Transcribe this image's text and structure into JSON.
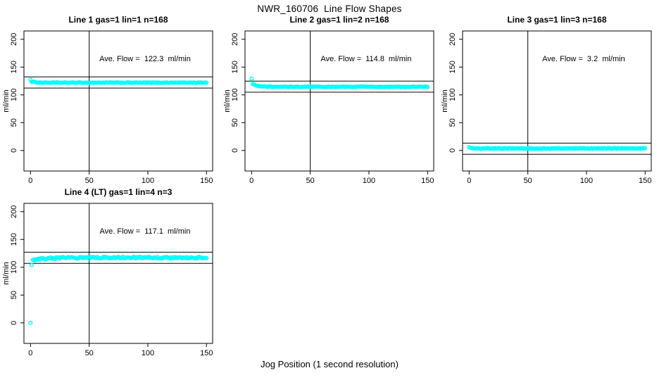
{
  "figure": {
    "title": "NWR_160706  Line Flow Shapes",
    "xlabel": "Jog Position (1 second resolution)",
    "point_color": "#00ffff",
    "axis_color": "#000000"
  },
  "chart_data": [
    {
      "type": "scatter",
      "title": "Line 1 gas=1 lin=1 n=168",
      "ave_flow_label": "Ave. Flow =  122.3  ml/min",
      "ave_flow": 122.3,
      "ylabel": "ml/min",
      "xlim": [
        -5.6,
        155.2
      ],
      "ylim": [
        -37,
        215
      ],
      "x_ticks": [
        0,
        50,
        100,
        150
      ],
      "y_ticks": [
        0,
        50,
        100,
        150,
        200
      ],
      "vline_x": 50,
      "ref_lines": [
        132.3,
        112.3
      ],
      "points_spec": {
        "outliers": [
          [
            0,
            127
          ]
        ],
        "band": {
          "x_start": 1,
          "x_end": 150,
          "start": 124,
          "settle": 122,
          "settle_by": 10,
          "noise": 0.55
        }
      }
    },
    {
      "type": "scatter",
      "title": "Line 2 gas=1 lin=2 n=168",
      "ave_flow_label": "Ave. Flow =  114.8  ml/min",
      "ave_flow": 114.8,
      "ylabel": "ml/min",
      "xlim": [
        -5.6,
        155.2
      ],
      "ylim": [
        -37,
        215
      ],
      "x_ticks": [
        0,
        50,
        100,
        150
      ],
      "y_ticks": [
        0,
        50,
        100,
        150,
        200
      ],
      "vline_x": 50,
      "ref_lines": [
        124.8,
        104.8
      ],
      "points_spec": {
        "outliers": [
          [
            0,
            129
          ]
        ],
        "band": {
          "x_start": 1,
          "x_end": 150,
          "start": 119.5,
          "settle": 114.5,
          "settle_by": 14,
          "noise": 0.6
        }
      }
    },
    {
      "type": "scatter",
      "title": "Line 3 gas=1 lin=3 n=168",
      "ave_flow_label": "Ave. Flow =  3.2  ml/min",
      "ave_flow": 3.2,
      "ylabel": "ml/min",
      "xlim": [
        -5.6,
        155.2
      ],
      "ylim": [
        -37,
        215
      ],
      "x_ticks": [
        0,
        50,
        100,
        150
      ],
      "y_ticks": [
        0,
        50,
        100,
        150,
        200
      ],
      "vline_x": 50,
      "ref_lines": [
        13.2,
        -6.8
      ],
      "points_spec": {
        "outliers": [],
        "band": {
          "x_start": 0,
          "x_end": 150,
          "start": 6.5,
          "settle": 3.6,
          "settle_by": 5,
          "noise": 0.75
        }
      }
    },
    {
      "type": "scatter",
      "title": "Line 4 (LT) gas=1 lin=4 n=3",
      "ave_flow_label": "Ave. Flow =  117.1  ml/min",
      "ave_flow": 117.1,
      "ylabel": "ml/min",
      "xlim": [
        -5.6,
        155.2
      ],
      "ylim": [
        -37,
        215
      ],
      "x_ticks": [
        0,
        50,
        100,
        150
      ],
      "y_ticks": [
        0,
        50,
        100,
        150,
        200
      ],
      "vline_x": 50,
      "ref_lines": [
        127.1,
        107.1
      ],
      "points_spec": {
        "outliers": [
          [
            0,
            0
          ],
          [
            1,
            104
          ]
        ],
        "band": {
          "x_start": 2,
          "x_end": 150,
          "start": 112.5,
          "settle": 117.2,
          "settle_by": 35,
          "noise": 1.7
        }
      }
    }
  ]
}
